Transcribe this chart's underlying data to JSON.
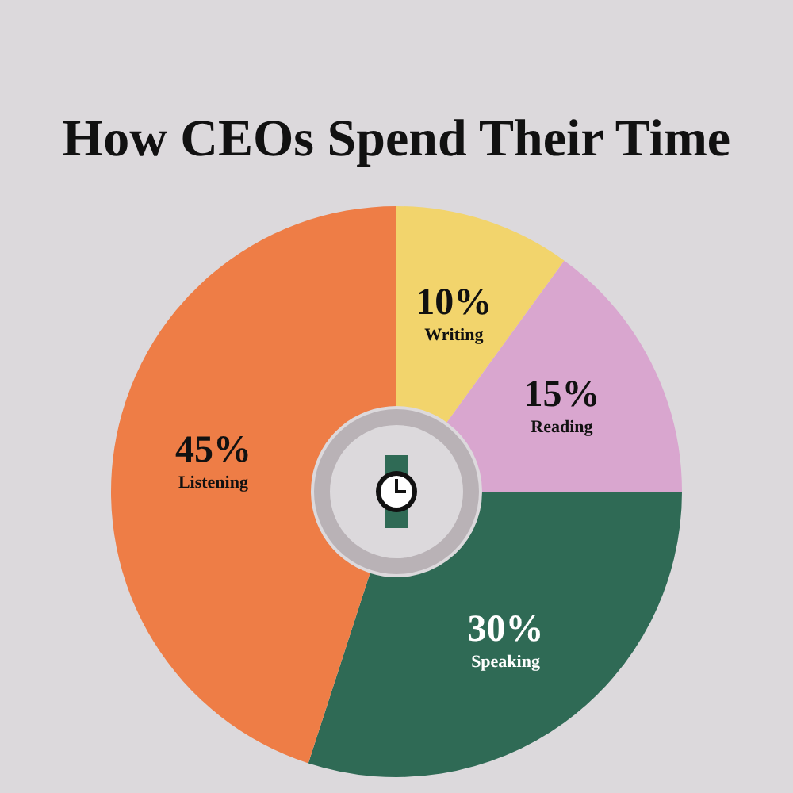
{
  "chart_data": {
    "type": "donut",
    "title": "How CEOs Spend Their Time",
    "categories": [
      "Writing",
      "Reading",
      "Speaking",
      "Listening"
    ],
    "values": [
      10,
      15,
      30,
      45
    ],
    "value_labels": [
      "10%",
      "15%",
      "30%",
      "45%"
    ],
    "colors": [
      "#f2d46c",
      "#d9a6cf",
      "#2f6a55",
      "#ee7d46"
    ],
    "legend": false
  }
}
